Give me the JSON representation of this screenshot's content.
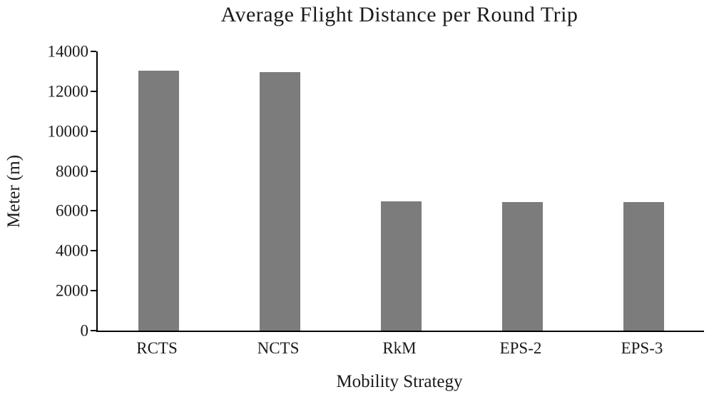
{
  "chart_data": {
    "type": "bar",
    "title": "Average Flight Distance per Round Trip",
    "xlabel": "Mobility Strategy",
    "ylabel": "Meter (m)",
    "categories": [
      "RCTS",
      "NCTS",
      "RkM",
      "EPS-2",
      "EPS-3"
    ],
    "values": [
      13050,
      12950,
      6470,
      6440,
      6460
    ],
    "ylim": [
      0,
      14000
    ],
    "ytick_step": 2000,
    "ytick_labels": [
      "0",
      "2000",
      "4000",
      "6000",
      "8000",
      "10000",
      "12000",
      "14000"
    ],
    "bar_color": "#7c7c7c",
    "axis_color": "#000000",
    "grid": false,
    "legend": false
  }
}
